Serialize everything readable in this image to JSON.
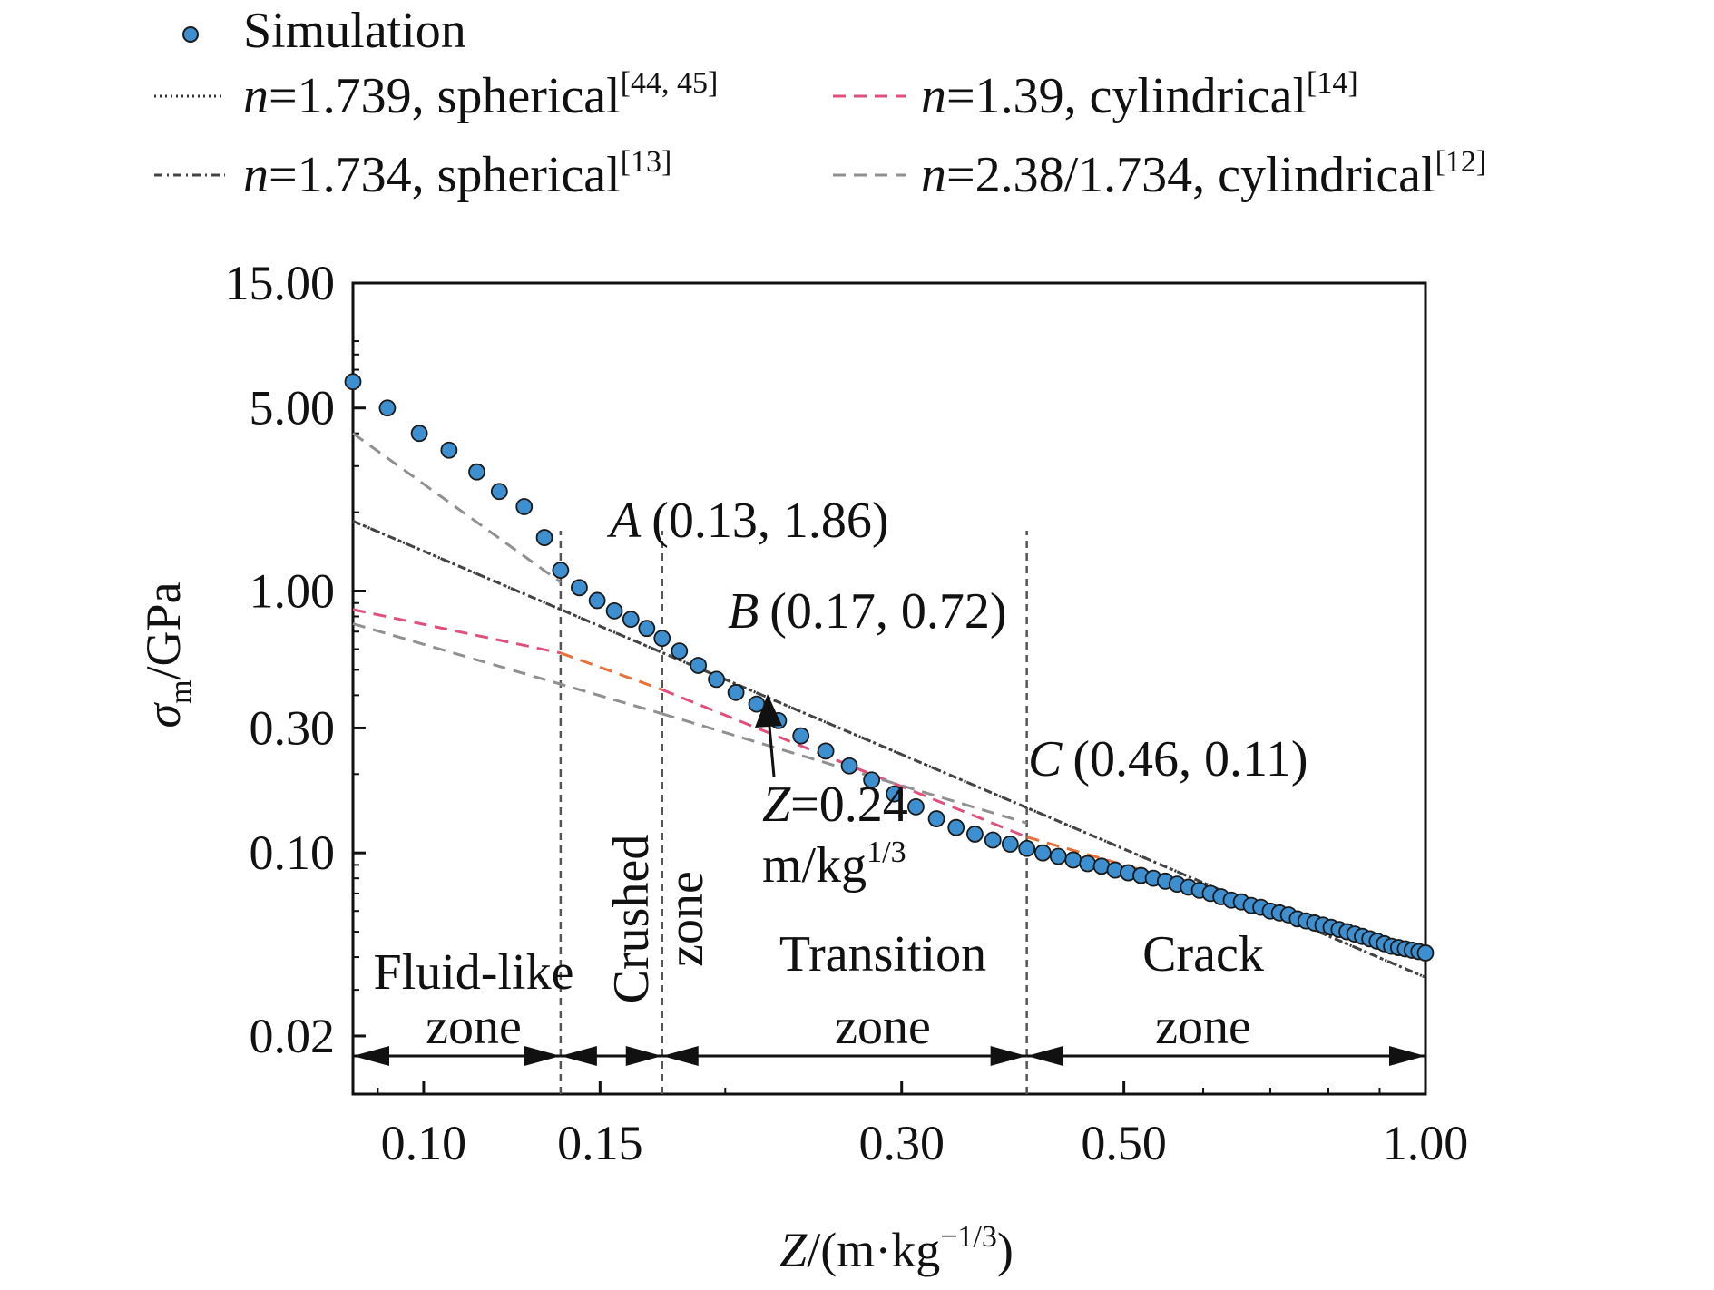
{
  "chart_data": {
    "type": "scatter",
    "xlabel": {
      "italic": "Z",
      "main": "/(m·kg",
      "sup": "−1/3",
      "close": ")"
    },
    "ylabel": {
      "sym": "σ",
      "sub": "m",
      "unit": "/GPa"
    },
    "x_scale": "log",
    "y_scale": "log",
    "xlim": [
      0.085,
      1.0
    ],
    "ylim": [
      0.012,
      15.0
    ],
    "x_ticks": [
      0.1,
      0.15,
      0.3,
      0.5,
      1.0
    ],
    "x_tick_labels": [
      "0.10",
      "0.15",
      "0.30",
      "0.50",
      "1.00"
    ],
    "y_ticks": [
      0.02,
      0.1,
      0.3,
      1.0,
      5.0,
      15.0
    ],
    "y_tick_labels": [
      "0.02",
      "0.10",
      "0.30",
      "1.00",
      "5.00",
      "15.00"
    ],
    "legend": {
      "simulation": "Simulation",
      "items": [
        {
          "n": "n",
          "text": "=1.739, spherical",
          "ref": "[44, 45]",
          "color": "#333333",
          "dash": "2,4"
        },
        {
          "n": "n",
          "text": "=1.39, cylindrical",
          "ref": "[14]",
          "color": "#e0507a",
          "dash": "14,9"
        },
        {
          "n": "n",
          "text": "=1.734, spherical",
          "ref": "[13]",
          "color": "#444444",
          "dash": "9,5,2,5"
        },
        {
          "n": "n",
          "text": "=2.38/1.734, cylindrical",
          "ref": "[12]",
          "color": "#909090",
          "dash": "14,9"
        }
      ]
    },
    "simulation_points": [
      [
        0.085,
        6.3
      ],
      [
        0.092,
        5.0
      ],
      [
        0.099,
        4.0
      ],
      [
        0.106,
        3.45
      ],
      [
        0.113,
        2.85
      ],
      [
        0.119,
        2.4
      ],
      [
        0.126,
        2.1
      ],
      [
        0.132,
        1.6
      ],
      [
        0.137,
        1.2
      ],
      [
        0.143,
        1.03
      ],
      [
        0.149,
        0.92
      ],
      [
        0.155,
        0.84
      ],
      [
        0.161,
        0.78
      ],
      [
        0.167,
        0.72
      ],
      [
        0.173,
        0.66
      ],
      [
        0.18,
        0.59
      ],
      [
        0.188,
        0.52
      ],
      [
        0.196,
        0.46
      ],
      [
        0.205,
        0.41
      ],
      [
        0.215,
        0.37
      ],
      [
        0.226,
        0.32
      ],
      [
        0.238,
        0.28
      ],
      [
        0.252,
        0.245
      ],
      [
        0.266,
        0.215
      ],
      [
        0.28,
        0.19
      ],
      [
        0.295,
        0.168
      ],
      [
        0.31,
        0.15
      ],
      [
        0.325,
        0.135
      ],
      [
        0.34,
        0.125
      ],
      [
        0.355,
        0.118
      ],
      [
        0.37,
        0.112
      ],
      [
        0.385,
        0.108
      ],
      [
        0.4,
        0.104
      ],
      [
        0.415,
        0.1
      ],
      [
        0.43,
        0.097
      ],
      [
        0.445,
        0.094
      ],
      [
        0.46,
        0.091
      ],
      [
        0.475,
        0.089
      ],
      [
        0.49,
        0.086
      ],
      [
        0.505,
        0.084
      ],
      [
        0.52,
        0.082
      ],
      [
        0.535,
        0.08
      ],
      [
        0.55,
        0.078
      ],
      [
        0.565,
        0.076
      ],
      [
        0.58,
        0.074
      ],
      [
        0.595,
        0.072
      ],
      [
        0.61,
        0.07
      ],
      [
        0.625,
        0.068
      ],
      [
        0.64,
        0.066
      ],
      [
        0.655,
        0.065
      ],
      [
        0.67,
        0.063
      ],
      [
        0.685,
        0.062
      ],
      [
        0.7,
        0.06
      ],
      [
        0.715,
        0.059
      ],
      [
        0.73,
        0.058
      ],
      [
        0.745,
        0.056
      ],
      [
        0.76,
        0.055
      ],
      [
        0.775,
        0.054
      ],
      [
        0.79,
        0.053
      ],
      [
        0.805,
        0.052
      ],
      [
        0.82,
        0.051
      ],
      [
        0.835,
        0.05
      ],
      [
        0.85,
        0.049
      ],
      [
        0.865,
        0.048
      ],
      [
        0.88,
        0.047
      ],
      [
        0.895,
        0.046
      ],
      [
        0.91,
        0.045
      ],
      [
        0.925,
        0.044
      ],
      [
        0.94,
        0.0435
      ],
      [
        0.955,
        0.043
      ],
      [
        0.97,
        0.0425
      ],
      [
        0.985,
        0.042
      ],
      [
        1.0,
        0.0415
      ]
    ],
    "fit_lines": [
      {
        "name": "n=1.739, spherical",
        "color": "#333333",
        "dash": "2,4",
        "points": [
          [
            0.085,
            1.85
          ],
          [
            1.0,
            0.0335
          ]
        ]
      },
      {
        "name": "n=1.734, spherical",
        "color": "#444444",
        "dash": "9,5,2,5",
        "points": [
          [
            0.085,
            1.85
          ],
          [
            1.0,
            0.0335
          ]
        ]
      },
      {
        "name": "n=1.39, cylindrical (fluid-like zone)",
        "color": "#e0507a",
        "dash": "14,9",
        "points": [
          [
            0.085,
            0.85
          ],
          [
            0.137,
            0.58
          ]
        ]
      },
      {
        "name": "n=1.39, cylindrical (crushed zone)",
        "color": "#e8703a",
        "dash": "14,9",
        "points": [
          [
            0.137,
            0.58
          ],
          [
            0.173,
            0.42
          ]
        ]
      },
      {
        "name": "n=1.39, cylindrical (transition zone)",
        "color": "#e0507a",
        "dash": "14,9",
        "points": [
          [
            0.173,
            0.42
          ],
          [
            0.4,
            0.115
          ]
        ]
      },
      {
        "name": "n=1.39, cylindrical (crack zone)",
        "color": "#e8703a",
        "dash": "14,9",
        "points": [
          [
            0.4,
            0.115
          ],
          [
            1.0,
            0.042
          ]
        ]
      },
      {
        "name": "n=2.38/1.734, cylindrical (part 1)",
        "color": "#909090",
        "dash": "14,9",
        "points": [
          [
            0.085,
            4.0
          ],
          [
            0.137,
            1.08
          ]
        ]
      },
      {
        "name": "n=2.38/1.734, cylindrical (part 2)",
        "color": "#909090",
        "dash": "14,9",
        "points": [
          [
            0.085,
            0.75
          ],
          [
            0.173,
            0.34
          ]
        ]
      },
      {
        "name": "n=2.38/1.734, cylindrical (part 3)",
        "color": "#909090",
        "dash": "14,9",
        "points": [
          [
            0.173,
            0.34
          ],
          [
            0.4,
            0.13
          ]
        ]
      }
    ],
    "zone_boundaries": [
      0.137,
      0.173,
      0.4
    ],
    "annotations": {
      "A": {
        "letter": "A",
        "coords": "(0.13, 1.86)"
      },
      "B": {
        "letter": "B",
        "coords": "(0.17, 0.72)"
      },
      "C": {
        "letter": "C",
        "coords": "(0.46, 0.11)"
      },
      "Z": {
        "line1": "Z=0.24",
        "line2": "m/kg",
        "sup": "1/3",
        "x": 0.24
      }
    },
    "zones": {
      "fluid": {
        "line1": "Fluid-like",
        "line2": "zone"
      },
      "crushed": {
        "line1": "Crushed",
        "line2": "zone"
      },
      "transition": {
        "line1": "Transition",
        "line2": "zone"
      },
      "crack": {
        "line1": "Crack",
        "line2": "zone"
      }
    },
    "colors": {
      "marker_fill": "#3d8fd0",
      "marker_edge": "#1a1a1a",
      "frame": "#111111"
    }
  }
}
